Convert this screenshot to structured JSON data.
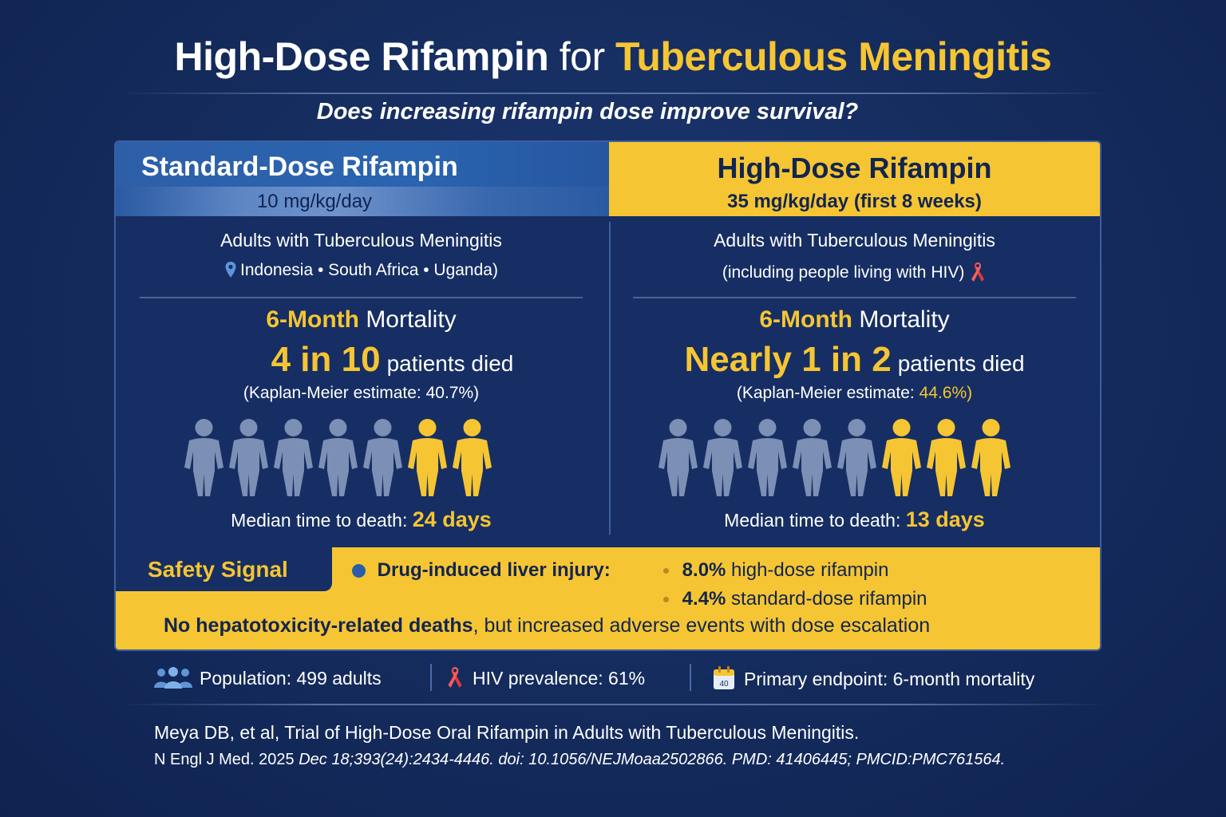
{
  "title": {
    "part1": "High-Dose Rifampin",
    "part2": "for",
    "part3": "Tuberculous Meningitis"
  },
  "subtitle": "Does increasing rifampin dose improve survival?",
  "standard": {
    "heading": "Standard-Dose Rifampin",
    "dose": "10 mg/kg/day",
    "population": "Adults with Tuberculous Meningitis",
    "sites": "Indonesia • South Africa • Uganda)",
    "mortality_prefix": "6-Month",
    "mortality_label": "Mortality",
    "big_number": "4 in 10",
    "big_text": "patients died",
    "km_label": "(Kaplan-Meier estimate: 40.7%)",
    "median_label": "Median time to death:",
    "median_value": "24 days",
    "icon_total": 7,
    "icon_highlight": 2
  },
  "high": {
    "heading": "High-Dose Rifampin",
    "dose": "35 mg/kg/day (first 8 weeks)",
    "population": "Adults with Tuberculous Meningitis",
    "population_note": "(including people living with HIV)",
    "mortality_prefix": "6-Month",
    "mortality_label": "Mortality",
    "big_number": "Nearly 1 in 2",
    "big_text": "patients died",
    "km_label": "(Kaplan-Meier estimate: ",
    "km_value": "44.6%)",
    "median_label": "Median time to death:",
    "median_value": "13 days",
    "icon_total": 8,
    "icon_highlight": 3
  },
  "safety": {
    "tab_label": "Safety Signal",
    "injury_label": "Drug-induced liver injury:",
    "high_value": "8.0%",
    "high_label": "high-dose rifampin",
    "std_value": "4.4%",
    "std_label": "standard-dose rifampin",
    "summary_bold": "No hepatotoxicity-related deaths",
    "summary_rest": ", but increased adverse events with dose escalation"
  },
  "footer": {
    "population": "Population: 499 adults",
    "hiv": "HIV prevalence: 61%",
    "calendar_number": "40",
    "endpoint": "Primary endpoint: 6-month mortality"
  },
  "reference": {
    "line1": "Meya DB, et al, Trial of High-Dose Oral Rifampin in Adults with Tuberculous Meningitis.",
    "line2_plain": "N Engl J Med. 2025 ",
    "line2_italic": "Dec 18;393(24):2434-4446. doi: 10.1056/NEJMoaa2502866. PMD: 41406445; PMCID:PMC761564."
  },
  "colors": {
    "navy": "#142b5c",
    "blue": "#2a64b0",
    "gold": "#f5c533",
    "person_grey": "#7c8fb4",
    "hiv_red": "#e23a3a"
  }
}
